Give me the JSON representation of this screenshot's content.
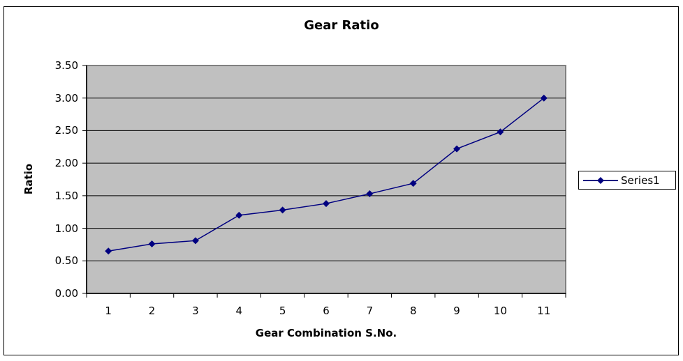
{
  "chart_data": {
    "type": "line",
    "title": "Gear Ratio",
    "xlabel": "Gear Combination S.No.",
    "ylabel": "Ratio",
    "categories": [
      "1",
      "2",
      "3",
      "4",
      "5",
      "6",
      "7",
      "8",
      "9",
      "10",
      "11"
    ],
    "series": [
      {
        "name": "Series1",
        "color": "#000080",
        "marker": "diamond",
        "values": [
          0.65,
          0.76,
          0.81,
          1.2,
          1.28,
          1.38,
          1.53,
          1.69,
          2.22,
          2.48,
          3.0
        ]
      }
    ],
    "ylim": [
      0,
      3.5
    ],
    "yticks": [
      "0.00",
      "0.50",
      "1.00",
      "1.50",
      "2.00",
      "2.50",
      "3.00",
      "3.50"
    ],
    "grid": {
      "horizontal": true,
      "vertical": false
    },
    "plot_background": "#c0c0c0",
    "legend_position": "right"
  },
  "legend": {
    "label": "Series1"
  }
}
